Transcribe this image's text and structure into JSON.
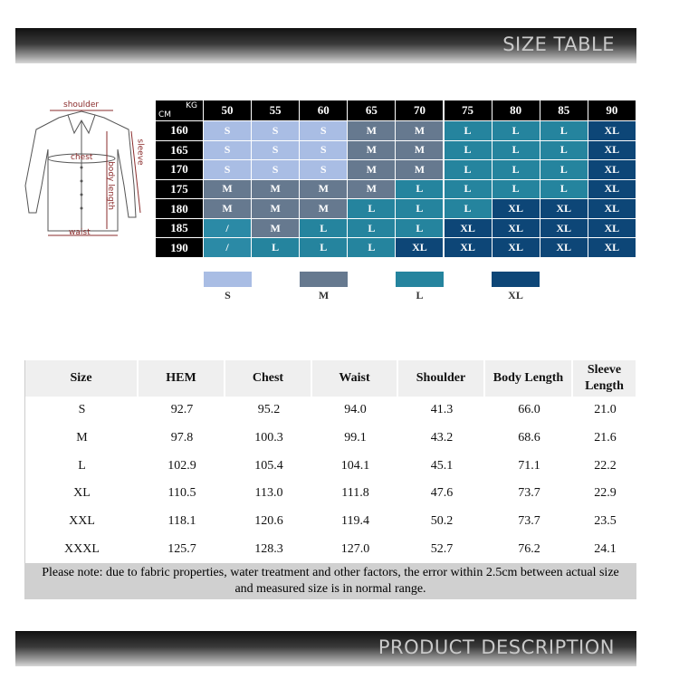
{
  "banner_top": {
    "title": "SIZE TABLE"
  },
  "diagram": {
    "labels": [
      "shoulder",
      "chest",
      "sleeve",
      "body length",
      "waist"
    ]
  },
  "size_grid": {
    "corner": {
      "top": "KG",
      "bottom": "CM"
    },
    "weights": [
      50,
      55,
      60,
      65,
      70,
      75,
      80,
      85,
      90
    ],
    "heights": [
      160,
      165,
      170,
      175,
      180,
      185,
      190
    ],
    "rows": [
      [
        "S",
        "S",
        "S",
        "M",
        "M",
        "L",
        "L",
        "L",
        "XL"
      ],
      [
        "S",
        "S",
        "S",
        "M",
        "M",
        "L",
        "L",
        "L",
        "XL"
      ],
      [
        "S",
        "S",
        "S",
        "M",
        "M",
        "L",
        "L",
        "L",
        "XL"
      ],
      [
        "M",
        "M",
        "M",
        "M",
        "L",
        "L",
        "L",
        "L",
        "XL"
      ],
      [
        "M",
        "M",
        "M",
        "L",
        "L",
        "L",
        "XL",
        "XL",
        "XL"
      ],
      [
        "/",
        "M",
        "L",
        "L",
        "L",
        "XL",
        "XL",
        "XL",
        "XL"
      ],
      [
        "/",
        "L",
        "L",
        "L",
        "XL",
        "XL",
        "XL",
        "XL",
        "XL"
      ]
    ],
    "colors": {
      "S": "#a9bde4",
      "M": "#66798f",
      "L": "#25849e",
      "XL": "#0d4677",
      "/": "#2b8aa6"
    }
  },
  "legend": {
    "items": [
      "S",
      "M",
      "L",
      "XL"
    ]
  },
  "measurements": {
    "columns": [
      "Size",
      "HEM",
      "Chest",
      "Waist",
      "Shoulder",
      "Body Length",
      "Sleeve Length"
    ],
    "rows": [
      [
        "S",
        "92.7",
        "95.2",
        "94.0",
        "41.3",
        "66.0",
        "21.0"
      ],
      [
        "M",
        "97.8",
        "100.3",
        "99.1",
        "43.2",
        "68.6",
        "21.6"
      ],
      [
        "L",
        "102.9",
        "105.4",
        "104.1",
        "45.1",
        "71.1",
        "22.2"
      ],
      [
        "XL",
        "110.5",
        "113.0",
        "111.8",
        "47.6",
        "73.7",
        "22.9"
      ],
      [
        "XXL",
        "118.1",
        "120.6",
        "119.4",
        "50.2",
        "73.7",
        "23.5"
      ],
      [
        "XXXL",
        "125.7",
        "128.3",
        "127.0",
        "52.7",
        "76.2",
        "24.1"
      ]
    ]
  },
  "note": [
    "Please note: due to fabric properties, water treatment and other factors, the error within 2.5cm between actual size",
    "and measured size is in normal range."
  ],
  "banner_bottom": {
    "title": "PRODUCT DESCRIPTION"
  }
}
